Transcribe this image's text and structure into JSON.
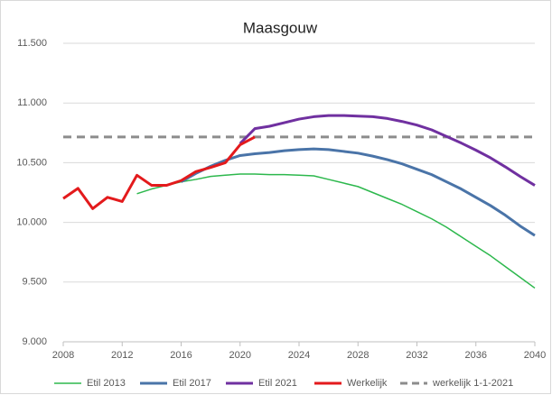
{
  "chart_data": {
    "type": "line",
    "title": "Maasgouw",
    "x": [
      2008,
      2009,
      2010,
      2011,
      2012,
      2013,
      2014,
      2015,
      2016,
      2017,
      2018,
      2019,
      2020,
      2021,
      2022,
      2023,
      2024,
      2025,
      2026,
      2027,
      2028,
      2029,
      2030,
      2031,
      2032,
      2033,
      2034,
      2035,
      2036,
      2037,
      2038,
      2039,
      2040
    ],
    "series": [
      {
        "name": "Etil 2013",
        "color": "#2db84d",
        "width": 1.5,
        "dash": false,
        "values": [
          null,
          null,
          null,
          null,
          null,
          10240,
          10280,
          10310,
          10340,
          10360,
          10385,
          10395,
          10405,
          10405,
          10400,
          10400,
          10395,
          10390,
          10360,
          10330,
          10300,
          10250,
          10200,
          10150,
          10090,
          10030,
          9960,
          9880,
          9800,
          9720,
          9630,
          9540,
          9450
        ]
      },
      {
        "name": "Etil 2017",
        "color": "#4a74a8",
        "width": 3,
        "dash": false,
        "values": [
          null,
          null,
          null,
          null,
          null,
          null,
          null,
          null,
          10340,
          10410,
          10470,
          10520,
          10560,
          10575,
          10585,
          10600,
          10610,
          10615,
          10610,
          10595,
          10580,
          10555,
          10525,
          10490,
          10445,
          10400,
          10340,
          10280,
          10210,
          10140,
          10060,
          9970,
          9890
        ]
      },
      {
        "name": "Etil 2021",
        "color": "#7030a0",
        "width": 3,
        "dash": false,
        "values": [
          null,
          null,
          null,
          null,
          null,
          null,
          null,
          null,
          null,
          null,
          null,
          null,
          10660,
          10785,
          10805,
          10835,
          10865,
          10885,
          10895,
          10895,
          10890,
          10885,
          10870,
          10845,
          10815,
          10775,
          10720,
          10665,
          10605,
          10540,
          10465,
          10385,
          10310
        ]
      },
      {
        "name": "Werkelijk",
        "color": "#e31a1c",
        "width": 3,
        "dash": false,
        "values": [
          10200,
          10285,
          10115,
          10210,
          10175,
          10395,
          10310,
          10310,
          10350,
          10425,
          10460,
          10500,
          10650,
          10715,
          null,
          null,
          null,
          null,
          null,
          null,
          null,
          null,
          null,
          null,
          null,
          null,
          null,
          null,
          null,
          null,
          null,
          null,
          null
        ]
      },
      {
        "name": "werkelijk 1-1-2021",
        "color": "#8c8c8c",
        "width": 3,
        "dash": true,
        "values": [
          10715,
          10715,
          10715,
          10715,
          10715,
          10715,
          10715,
          10715,
          10715,
          10715,
          10715,
          10715,
          10715,
          10715,
          10715,
          10715,
          10715,
          10715,
          10715,
          10715,
          10715,
          10715,
          10715,
          10715,
          10715,
          10715,
          10715,
          10715,
          10715,
          10715,
          10715,
          10715,
          10715
        ]
      }
    ],
    "xlim": [
      2008,
      2040
    ],
    "xticks": [
      2008,
      2012,
      2016,
      2020,
      2024,
      2028,
      2032,
      2036,
      2040
    ],
    "ylim": [
      9000,
      11500
    ],
    "yticks": [
      {
        "value": 9000,
        "label": "9.000"
      },
      {
        "value": 9500,
        "label": "9.500"
      },
      {
        "value": 10000,
        "label": "10.000"
      },
      {
        "value": 10500,
        "label": "10.500"
      },
      {
        "value": 11000,
        "label": "11.000"
      },
      {
        "value": 11500,
        "label": "11.500"
      }
    ],
    "grid": true,
    "legend": "bottom"
  }
}
